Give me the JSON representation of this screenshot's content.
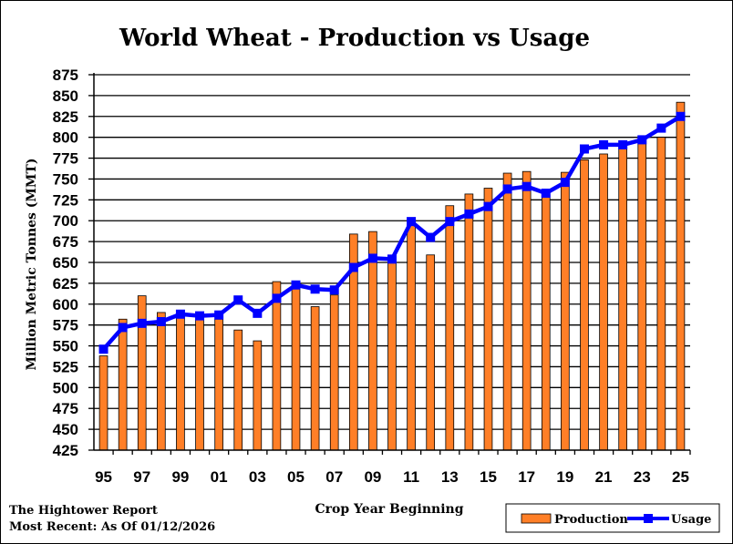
{
  "colors": {
    "production": "#ff7f27",
    "production_outline": "#000000",
    "usage": "#0000ff",
    "grid": "#000000"
  },
  "footer": {
    "source": "The Hightower Report",
    "date": "Most Recent: As Of 01/12/2026"
  },
  "chart_data": {
    "type": "bar",
    "title": "World Wheat - Production vs Usage",
    "xlabel": "Crop Year Beginning",
    "ylabel": "Million Metric Tonnes (MMT)",
    "ylim": [
      425,
      875
    ],
    "yticks": [
      425,
      450,
      475,
      500,
      525,
      550,
      575,
      600,
      625,
      650,
      675,
      700,
      725,
      750,
      775,
      800,
      825,
      850,
      875
    ],
    "grid": true,
    "legend": "bottom-right",
    "categories": [
      "95",
      "96",
      "97",
      "98",
      "99",
      "00",
      "01",
      "02",
      "03",
      "04",
      "05",
      "06",
      "07",
      "08",
      "09",
      "10",
      "11",
      "12",
      "13",
      "14",
      "15",
      "16",
      "17",
      "18",
      "19",
      "20",
      "21",
      "22",
      "23",
      "24",
      "25"
    ],
    "xtick_labels": [
      "95",
      "97",
      "99",
      "01",
      "03",
      "05",
      "07",
      "09",
      "11",
      "13",
      "15",
      "17",
      "19",
      "21",
      "23",
      "25"
    ],
    "series": [
      {
        "name": "Production",
        "type": "bar",
        "values": [
          538,
          582,
          610,
          590,
          586,
          583,
          582,
          569,
          556,
          627,
          620,
          597,
          611,
          684,
          687,
          651,
          695,
          659,
          718,
          732,
          739,
          757,
          759,
          731,
          758,
          773,
          780,
          789,
          798,
          800,
          842
        ]
      },
      {
        "name": "Usage",
        "type": "line",
        "values": [
          546,
          572,
          577,
          579,
          588,
          586,
          587,
          605,
          589,
          607,
          623,
          618,
          617,
          644,
          655,
          654,
          699,
          680,
          699,
          708,
          717,
          738,
          741,
          733,
          746,
          786,
          791,
          791,
          797,
          811,
          825
        ]
      }
    ]
  }
}
